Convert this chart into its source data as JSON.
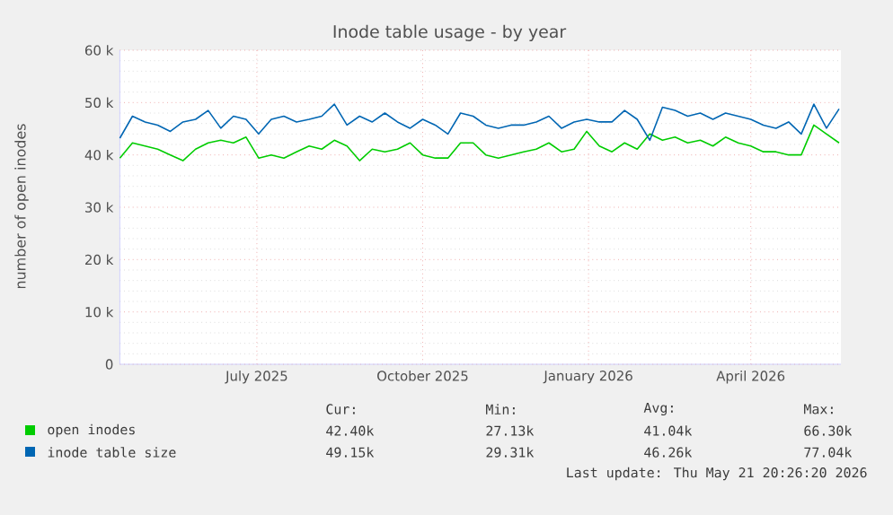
{
  "chart_data": {
    "type": "line",
    "title": "Inode table usage - by year",
    "ylabel": "number of open inodes",
    "x": [
      "2025-04-16",
      "2025-04-23",
      "2025-04-30",
      "2025-05-07",
      "2025-05-14",
      "2025-05-21",
      "2025-05-28",
      "2025-06-04",
      "2025-06-11",
      "2025-06-18",
      "2025-06-25",
      "2025-07-02",
      "2025-07-09",
      "2025-07-16",
      "2025-07-23",
      "2025-07-30",
      "2025-08-06",
      "2025-08-13",
      "2025-08-20",
      "2025-08-27",
      "2025-09-03",
      "2025-09-10",
      "2025-09-17",
      "2025-09-24",
      "2025-10-01",
      "2025-10-08",
      "2025-10-15",
      "2025-10-22",
      "2025-10-29",
      "2025-11-05",
      "2025-11-12",
      "2025-11-19",
      "2025-11-26",
      "2025-12-03",
      "2025-12-10",
      "2025-12-17",
      "2025-12-24",
      "2025-12-31",
      "2026-01-07",
      "2026-01-14",
      "2026-01-21",
      "2026-01-28",
      "2026-02-04",
      "2026-02-11",
      "2026-02-18",
      "2026-02-25",
      "2026-03-04",
      "2026-03-11",
      "2026-03-18",
      "2026-03-25",
      "2026-04-01",
      "2026-04-08",
      "2026-04-15",
      "2026-04-22",
      "2026-04-29",
      "2026-05-06",
      "2026-05-13",
      "2026-05-20"
    ],
    "series": [
      {
        "name": "open inodes",
        "color": "#00cc00",
        "values": [
          39400,
          42300,
          41700,
          41100,
          40000,
          38900,
          41100,
          42300,
          42800,
          42300,
          43400,
          39400,
          40000,
          39400,
          40600,
          41700,
          41100,
          42800,
          41700,
          38900,
          41100,
          40600,
          41100,
          42300,
          40000,
          39400,
          39400,
          42300,
          42300,
          40000,
          39400,
          40000,
          40600,
          41100,
          42300,
          40600,
          41100,
          44500,
          41700,
          40600,
          42300,
          41100,
          44000,
          42800,
          43400,
          42300,
          42800,
          41700,
          43400,
          42300,
          41700,
          40600,
          40600,
          40000,
          40000,
          45700,
          44000,
          42300
        ]
      },
      {
        "name": "inode table size",
        "color": "#0066b3",
        "values": [
          43200,
          47400,
          46300,
          45700,
          44500,
          46300,
          46800,
          48500,
          45100,
          47400,
          46800,
          44000,
          46800,
          47400,
          46300,
          46800,
          47400,
          49700,
          45700,
          47400,
          46300,
          48000,
          46300,
          45100,
          46800,
          45700,
          44000,
          48000,
          47400,
          45700,
          45100,
          45700,
          45700,
          46300,
          47400,
          45100,
          46300,
          46800,
          46300,
          46300,
          48500,
          46800,
          42800,
          49100,
          48500,
          47400,
          48000,
          46800,
          48000,
          47400,
          46800,
          45700,
          45100,
          46300,
          44000,
          49700,
          45100,
          48800
        ]
      }
    ],
    "xlim": [
      "2025-04-16",
      "2026-05-21"
    ],
    "xticks": [
      {
        "value": "2025-07-01",
        "label": "July 2025"
      },
      {
        "value": "2025-10-01",
        "label": "October 2025"
      },
      {
        "value": "2026-01-01",
        "label": "January 2026"
      },
      {
        "value": "2026-04-01",
        "label": "April 2026"
      }
    ],
    "ylim": [
      0,
      60000
    ],
    "yticks": [
      0,
      {
        "value": 10000,
        "label": "10 k"
      },
      {
        "value": 20000,
        "label": "20 k"
      },
      {
        "value": 30000,
        "label": "30 k"
      },
      {
        "value": 40000,
        "label": "40 k"
      },
      {
        "value": 50000,
        "label": "50 k"
      },
      {
        "value": 60000,
        "label": "60 k"
      }
    ],
    "grid": true,
    "legend": "bottom",
    "annotations": [
      "Cur:",
      "Min:",
      "Avg:",
      "Max:",
      "42.40k",
      "27.13k",
      "41.04k",
      "66.30k",
      "49.15k",
      "29.31k",
      "46.26k",
      "77.04k",
      "Last update: Thu May 21 20:26:20 2026"
    ]
  }
}
